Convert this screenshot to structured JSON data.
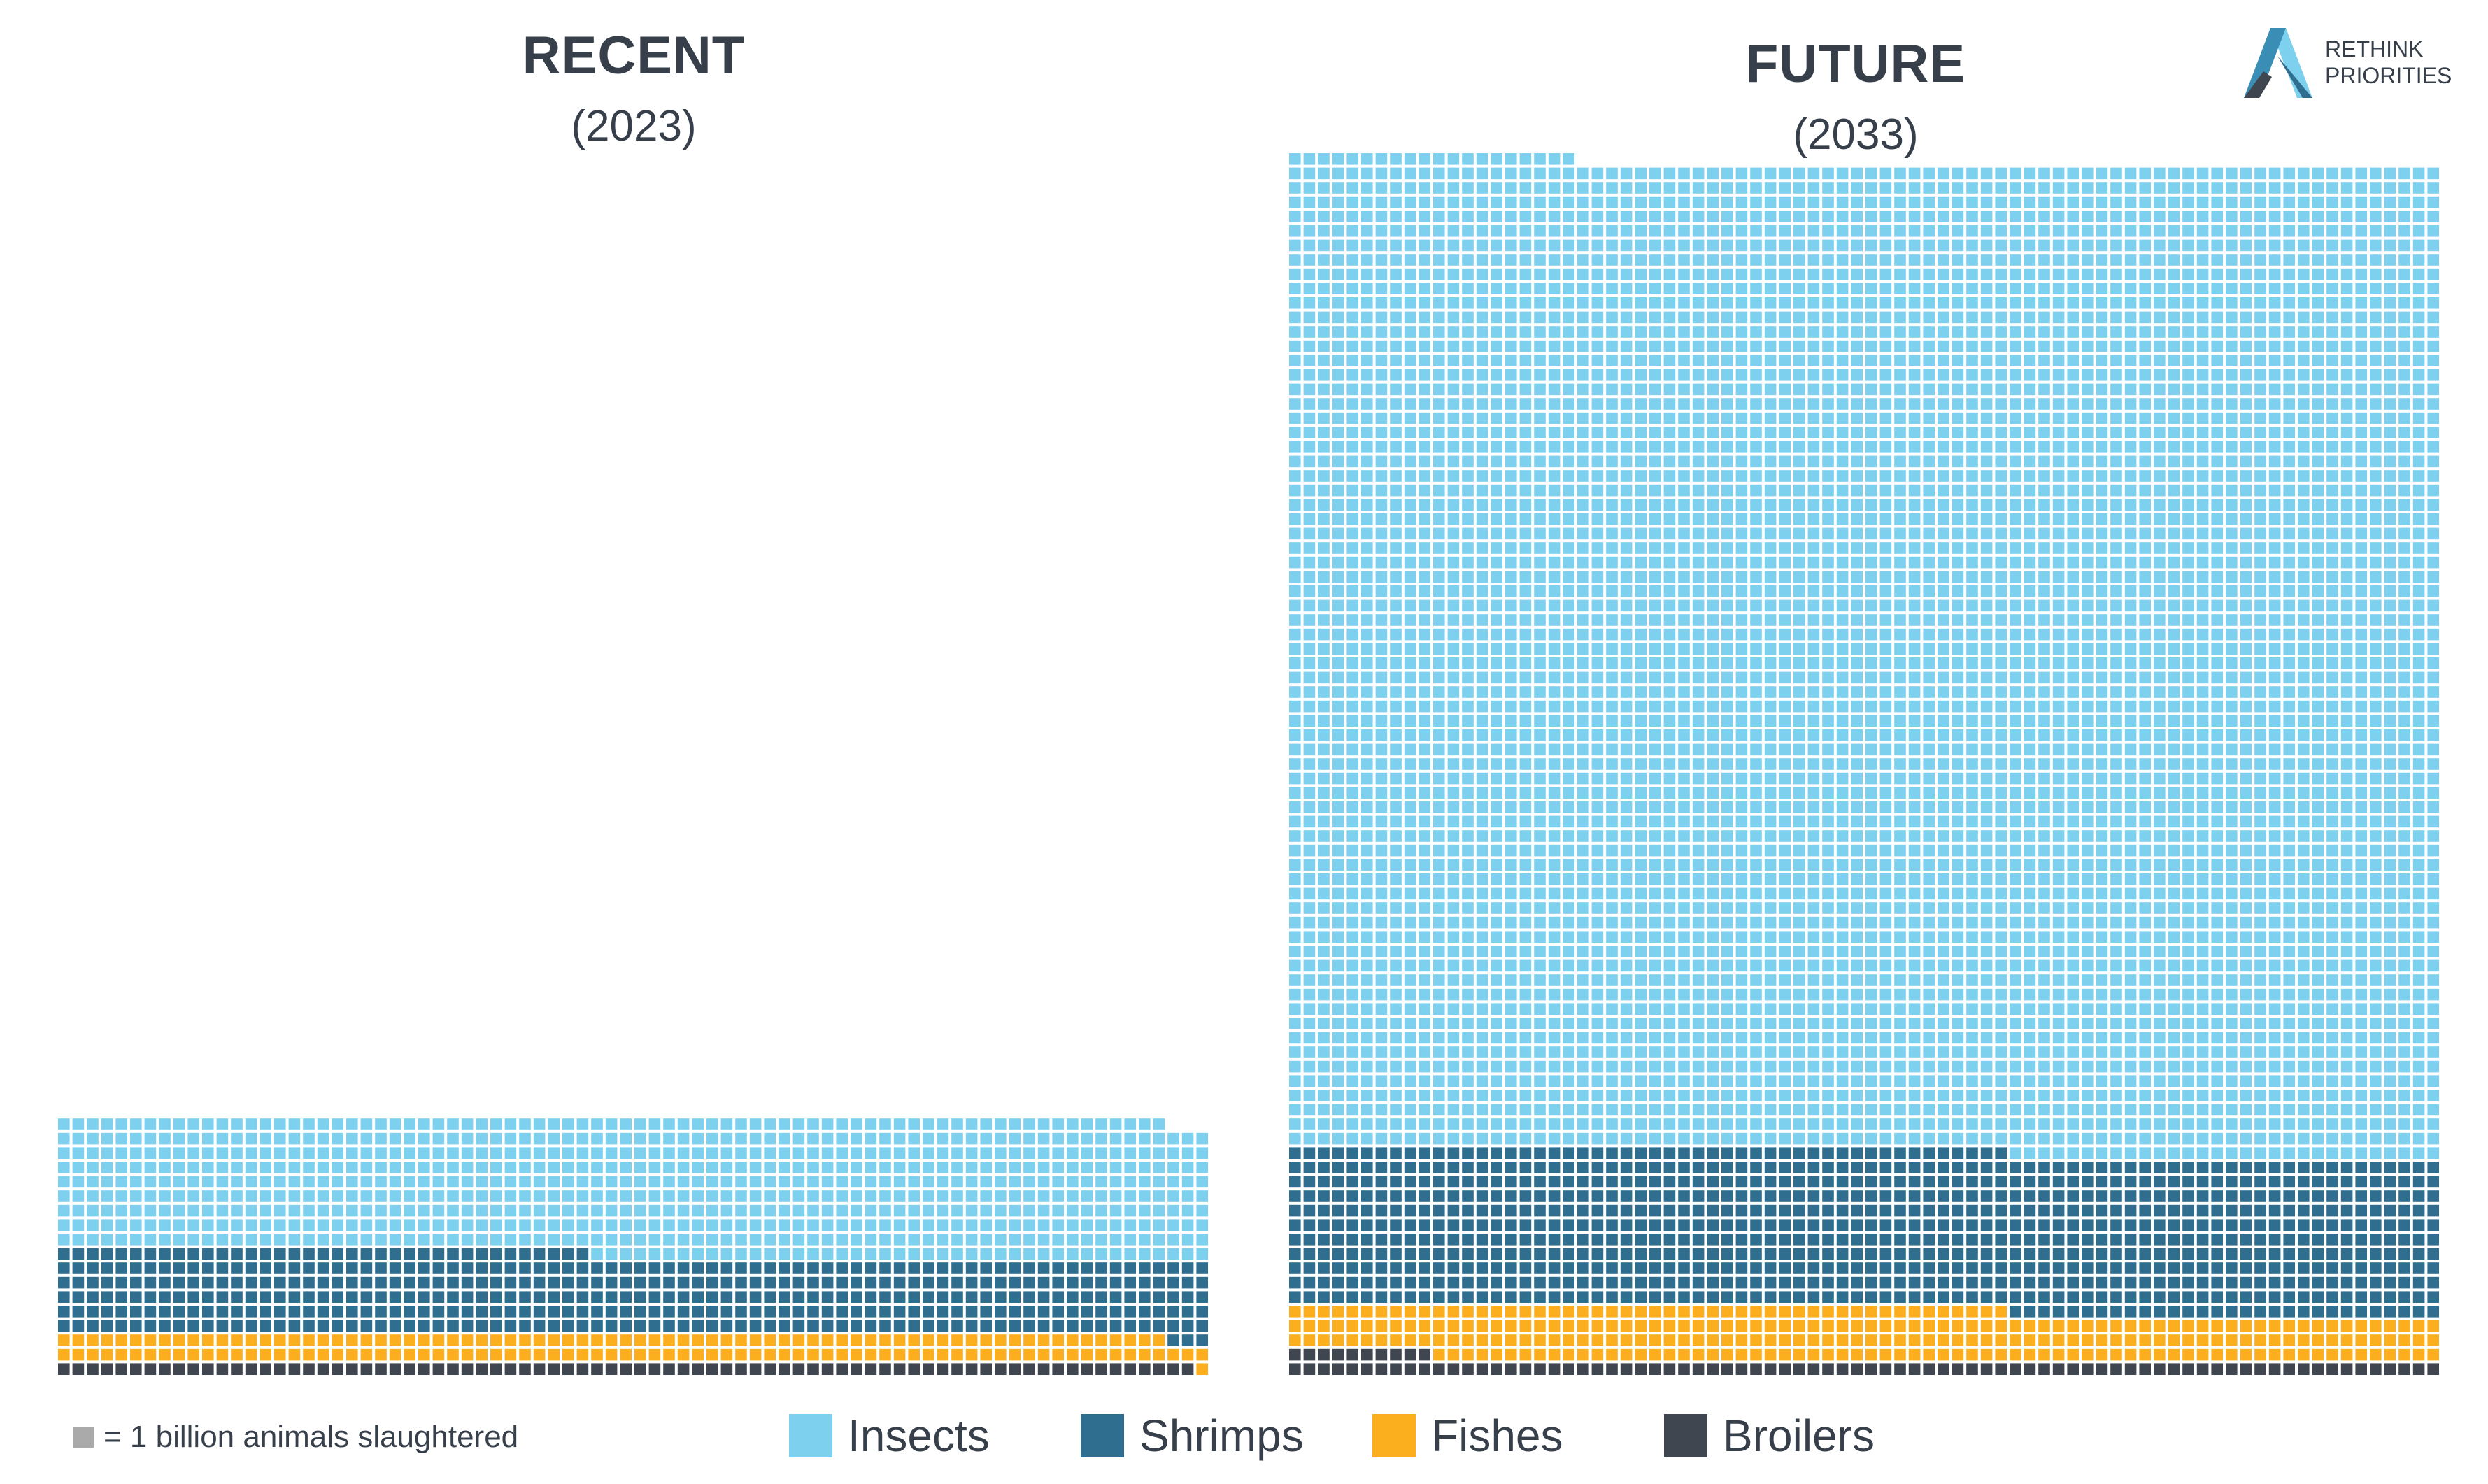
{
  "unit_note": "= 1 billion animals slaughtered",
  "logo": {
    "line1": "RETHINK",
    "line2": "PRIORITIES"
  },
  "chart_data": [
    {
      "type": "waffle",
      "title": "RECENT",
      "subtitle": "(2023)",
      "units": "billion animals slaughtered",
      "series": [
        {
          "name": "Broilers",
          "value": 79
        },
        {
          "name": "Fishes",
          "value": 158
        },
        {
          "name": "Shrimps",
          "value": 440
        },
        {
          "name": "Insects",
          "value": 760
        }
      ]
    },
    {
      "type": "waffle",
      "title": "FUTURE",
      "subtitle": "(2033)",
      "units": "billion animals slaughtered",
      "series": [
        {
          "name": "Broilers",
          "value": 90
        },
        {
          "name": "Fishes",
          "value": 280
        },
        {
          "name": "Shrimps",
          "value": 880
        },
        {
          "name": "Insects",
          "value": 5490
        }
      ]
    }
  ],
  "legend": [
    {
      "name": "Insects",
      "color": "#7ed0ef"
    },
    {
      "name": "Shrimps",
      "color": "#2f6e8e"
    },
    {
      "name": "Fishes",
      "color": "#fbaf1f"
    },
    {
      "name": "Broilers",
      "color": "#3f4650"
    }
  ]
}
